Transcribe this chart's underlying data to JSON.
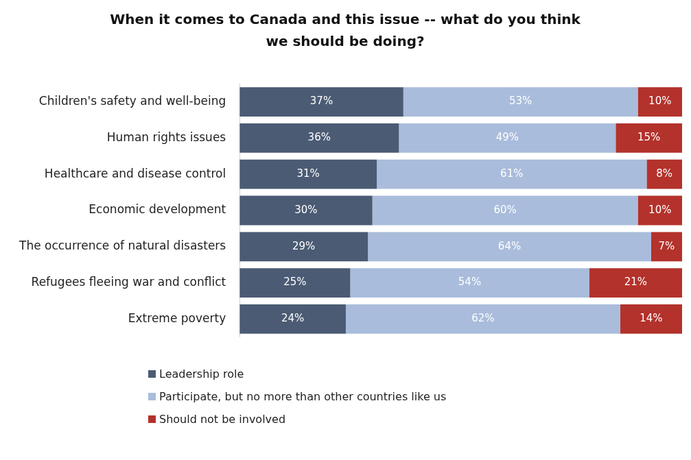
{
  "chart_data": {
    "type": "bar",
    "orientation": "horizontal",
    "stacked": true,
    "title": "When it comes to Canada and this issue -- what do you think we should be doing?",
    "categories": [
      "Children's safety and well-being",
      "Human rights issues",
      "Healthcare and disease control",
      "Economic development",
      "The occurrence of natural disasters",
      "Refugees fleeing war and conflict",
      "Extreme poverty"
    ],
    "series": [
      {
        "name": "Leadership role",
        "color": "#4b5b74",
        "values": [
          37,
          36,
          31,
          30,
          29,
          25,
          24
        ],
        "value_labels": [
          "37%",
          "36%",
          "31%",
          "30%",
          "29%",
          "25%",
          "24%"
        ]
      },
      {
        "name": "Participate, but no more than other countries like us",
        "color": "#a9bcdb",
        "values": [
          53,
          49,
          61,
          60,
          64,
          54,
          62
        ],
        "value_labels": [
          "53%",
          "49%",
          "61%",
          "60%",
          "64%",
          "54%",
          "62%"
        ]
      },
      {
        "name": "Should not be involved",
        "color": "#b3322b",
        "values": [
          10,
          15,
          8,
          10,
          7,
          21,
          14
        ],
        "value_labels": [
          "10%",
          "15%",
          "8%",
          "10%",
          "7%",
          "21%",
          "14%"
        ]
      }
    ],
    "legend": "bottom",
    "grid": false
  }
}
